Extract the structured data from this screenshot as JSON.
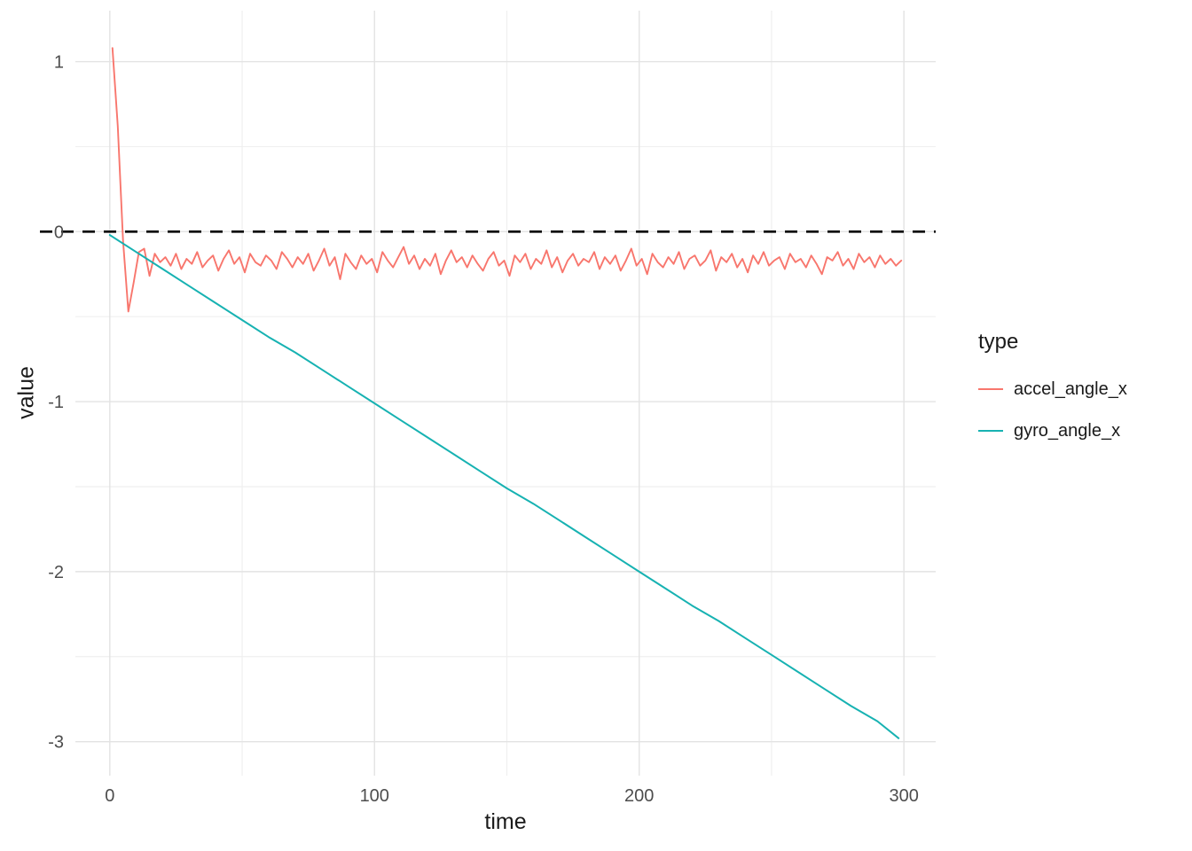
{
  "figure": {
    "background": "#ffffff",
    "grid_major_color": "#e3e3e3",
    "grid_minor_color": "#efefef",
    "tick_label_color": "#4d4d4d",
    "title_color": "#1a1a1a"
  },
  "legend": {
    "title": "type",
    "entries": [
      {
        "label": "accel_angle_x",
        "color": "#F8766D"
      },
      {
        "label": "gyro_angle_x",
        "color": "#17B2B2"
      }
    ]
  },
  "chart_data": {
    "type": "line",
    "title": "",
    "xlabel": "time",
    "ylabel": "value",
    "xlim": [
      -13,
      312
    ],
    "ylim": [
      -3.2,
      1.3
    ],
    "x_ticks": [
      0,
      100,
      200,
      300
    ],
    "x_minor_ticks": [
      50,
      150,
      250
    ],
    "y_ticks": [
      1,
      0,
      -1,
      -2,
      -3
    ],
    "y_minor_ticks": [
      0.5,
      -0.5,
      -1.5,
      -2.5
    ],
    "grid": true,
    "legend_position": "right",
    "reference_line": {
      "y": 0,
      "color": "#000000",
      "style": "dashed",
      "width": 2.6
    },
    "series": [
      {
        "name": "accel_angle_x",
        "color": "#F8766D",
        "width": 1.9,
        "x": [
          1,
          3,
          5,
          7,
          9,
          11,
          13,
          15,
          17,
          19,
          21,
          23,
          25,
          27,
          29,
          31,
          33,
          35,
          37,
          39,
          41,
          43,
          45,
          47,
          49,
          51,
          53,
          55,
          57,
          59,
          61,
          63,
          65,
          67,
          69,
          71,
          73,
          75,
          77,
          79,
          81,
          83,
          85,
          87,
          89,
          91,
          93,
          95,
          97,
          99,
          101,
          103,
          105,
          107,
          109,
          111,
          113,
          115,
          117,
          119,
          121,
          123,
          125,
          127,
          129,
          131,
          133,
          135,
          137,
          139,
          141,
          143,
          145,
          147,
          149,
          151,
          153,
          155,
          157,
          159,
          161,
          163,
          165,
          167,
          169,
          171,
          173,
          175,
          177,
          179,
          181,
          183,
          185,
          187,
          189,
          191,
          193,
          195,
          197,
          199,
          201,
          203,
          205,
          207,
          209,
          211,
          213,
          215,
          217,
          219,
          221,
          223,
          225,
          227,
          229,
          231,
          233,
          235,
          237,
          239,
          241,
          243,
          245,
          247,
          249,
          251,
          253,
          255,
          257,
          259,
          261,
          263,
          265,
          267,
          269,
          271,
          273,
          275,
          277,
          279,
          281,
          283,
          285,
          287,
          289,
          291,
          293,
          295,
          297,
          299
        ],
        "y": [
          1.08,
          0.62,
          -0.05,
          -0.47,
          -0.3,
          -0.12,
          -0.1,
          -0.26,
          -0.13,
          -0.18,
          -0.15,
          -0.2,
          -0.13,
          -0.22,
          -0.16,
          -0.19,
          -0.12,
          -0.21,
          -0.17,
          -0.14,
          -0.23,
          -0.16,
          -0.11,
          -0.19,
          -0.15,
          -0.24,
          -0.13,
          -0.18,
          -0.2,
          -0.14,
          -0.17,
          -0.22,
          -0.12,
          -0.16,
          -0.21,
          -0.15,
          -0.19,
          -0.13,
          -0.23,
          -0.17,
          -0.1,
          -0.2,
          -0.15,
          -0.28,
          -0.13,
          -0.18,
          -0.22,
          -0.14,
          -0.19,
          -0.16,
          -0.24,
          -0.12,
          -0.17,
          -0.21,
          -0.15,
          -0.09,
          -0.19,
          -0.14,
          -0.22,
          -0.16,
          -0.2,
          -0.13,
          -0.25,
          -0.17,
          -0.11,
          -0.18,
          -0.15,
          -0.21,
          -0.14,
          -0.19,
          -0.23,
          -0.16,
          -0.12,
          -0.2,
          -0.17,
          -0.26,
          -0.14,
          -0.18,
          -0.13,
          -0.22,
          -0.16,
          -0.19,
          -0.11,
          -0.21,
          -0.15,
          -0.24,
          -0.17,
          -0.13,
          -0.2,
          -0.16,
          -0.18,
          -0.12,
          -0.22,
          -0.15,
          -0.19,
          -0.14,
          -0.23,
          -0.17,
          -0.1,
          -0.2,
          -0.16,
          -0.25,
          -0.13,
          -0.18,
          -0.21,
          -0.15,
          -0.19,
          -0.12,
          -0.22,
          -0.16,
          -0.14,
          -0.2,
          -0.17,
          -0.11,
          -0.23,
          -0.15,
          -0.18,
          -0.13,
          -0.21,
          -0.16,
          -0.24,
          -0.14,
          -0.19,
          -0.12,
          -0.2,
          -0.17,
          -0.15,
          -0.22,
          -0.13,
          -0.18,
          -0.16,
          -0.21,
          -0.14,
          -0.19,
          -0.25,
          -0.15,
          -0.17,
          -0.12,
          -0.2,
          -0.16,
          -0.22,
          -0.13,
          -0.18,
          -0.15,
          -0.21,
          -0.14,
          -0.19,
          -0.16,
          -0.2,
          -0.17
        ]
      },
      {
        "name": "gyro_angle_x",
        "color": "#17B2B2",
        "width": 2.0,
        "x": [
          0,
          10,
          20,
          30,
          40,
          50,
          60,
          70,
          80,
          90,
          100,
          110,
          120,
          130,
          140,
          150,
          160,
          170,
          180,
          190,
          200,
          210,
          220,
          230,
          240,
          250,
          260,
          270,
          280,
          290,
          298
        ],
        "y": [
          -0.02,
          -0.12,
          -0.22,
          -0.32,
          -0.42,
          -0.52,
          -0.62,
          -0.71,
          -0.81,
          -0.91,
          -1.01,
          -1.11,
          -1.21,
          -1.31,
          -1.41,
          -1.51,
          -1.6,
          -1.7,
          -1.8,
          -1.9,
          -2.0,
          -2.1,
          -2.2,
          -2.29,
          -2.39,
          -2.49,
          -2.59,
          -2.69,
          -2.79,
          -2.88,
          -2.98
        ]
      }
    ]
  }
}
